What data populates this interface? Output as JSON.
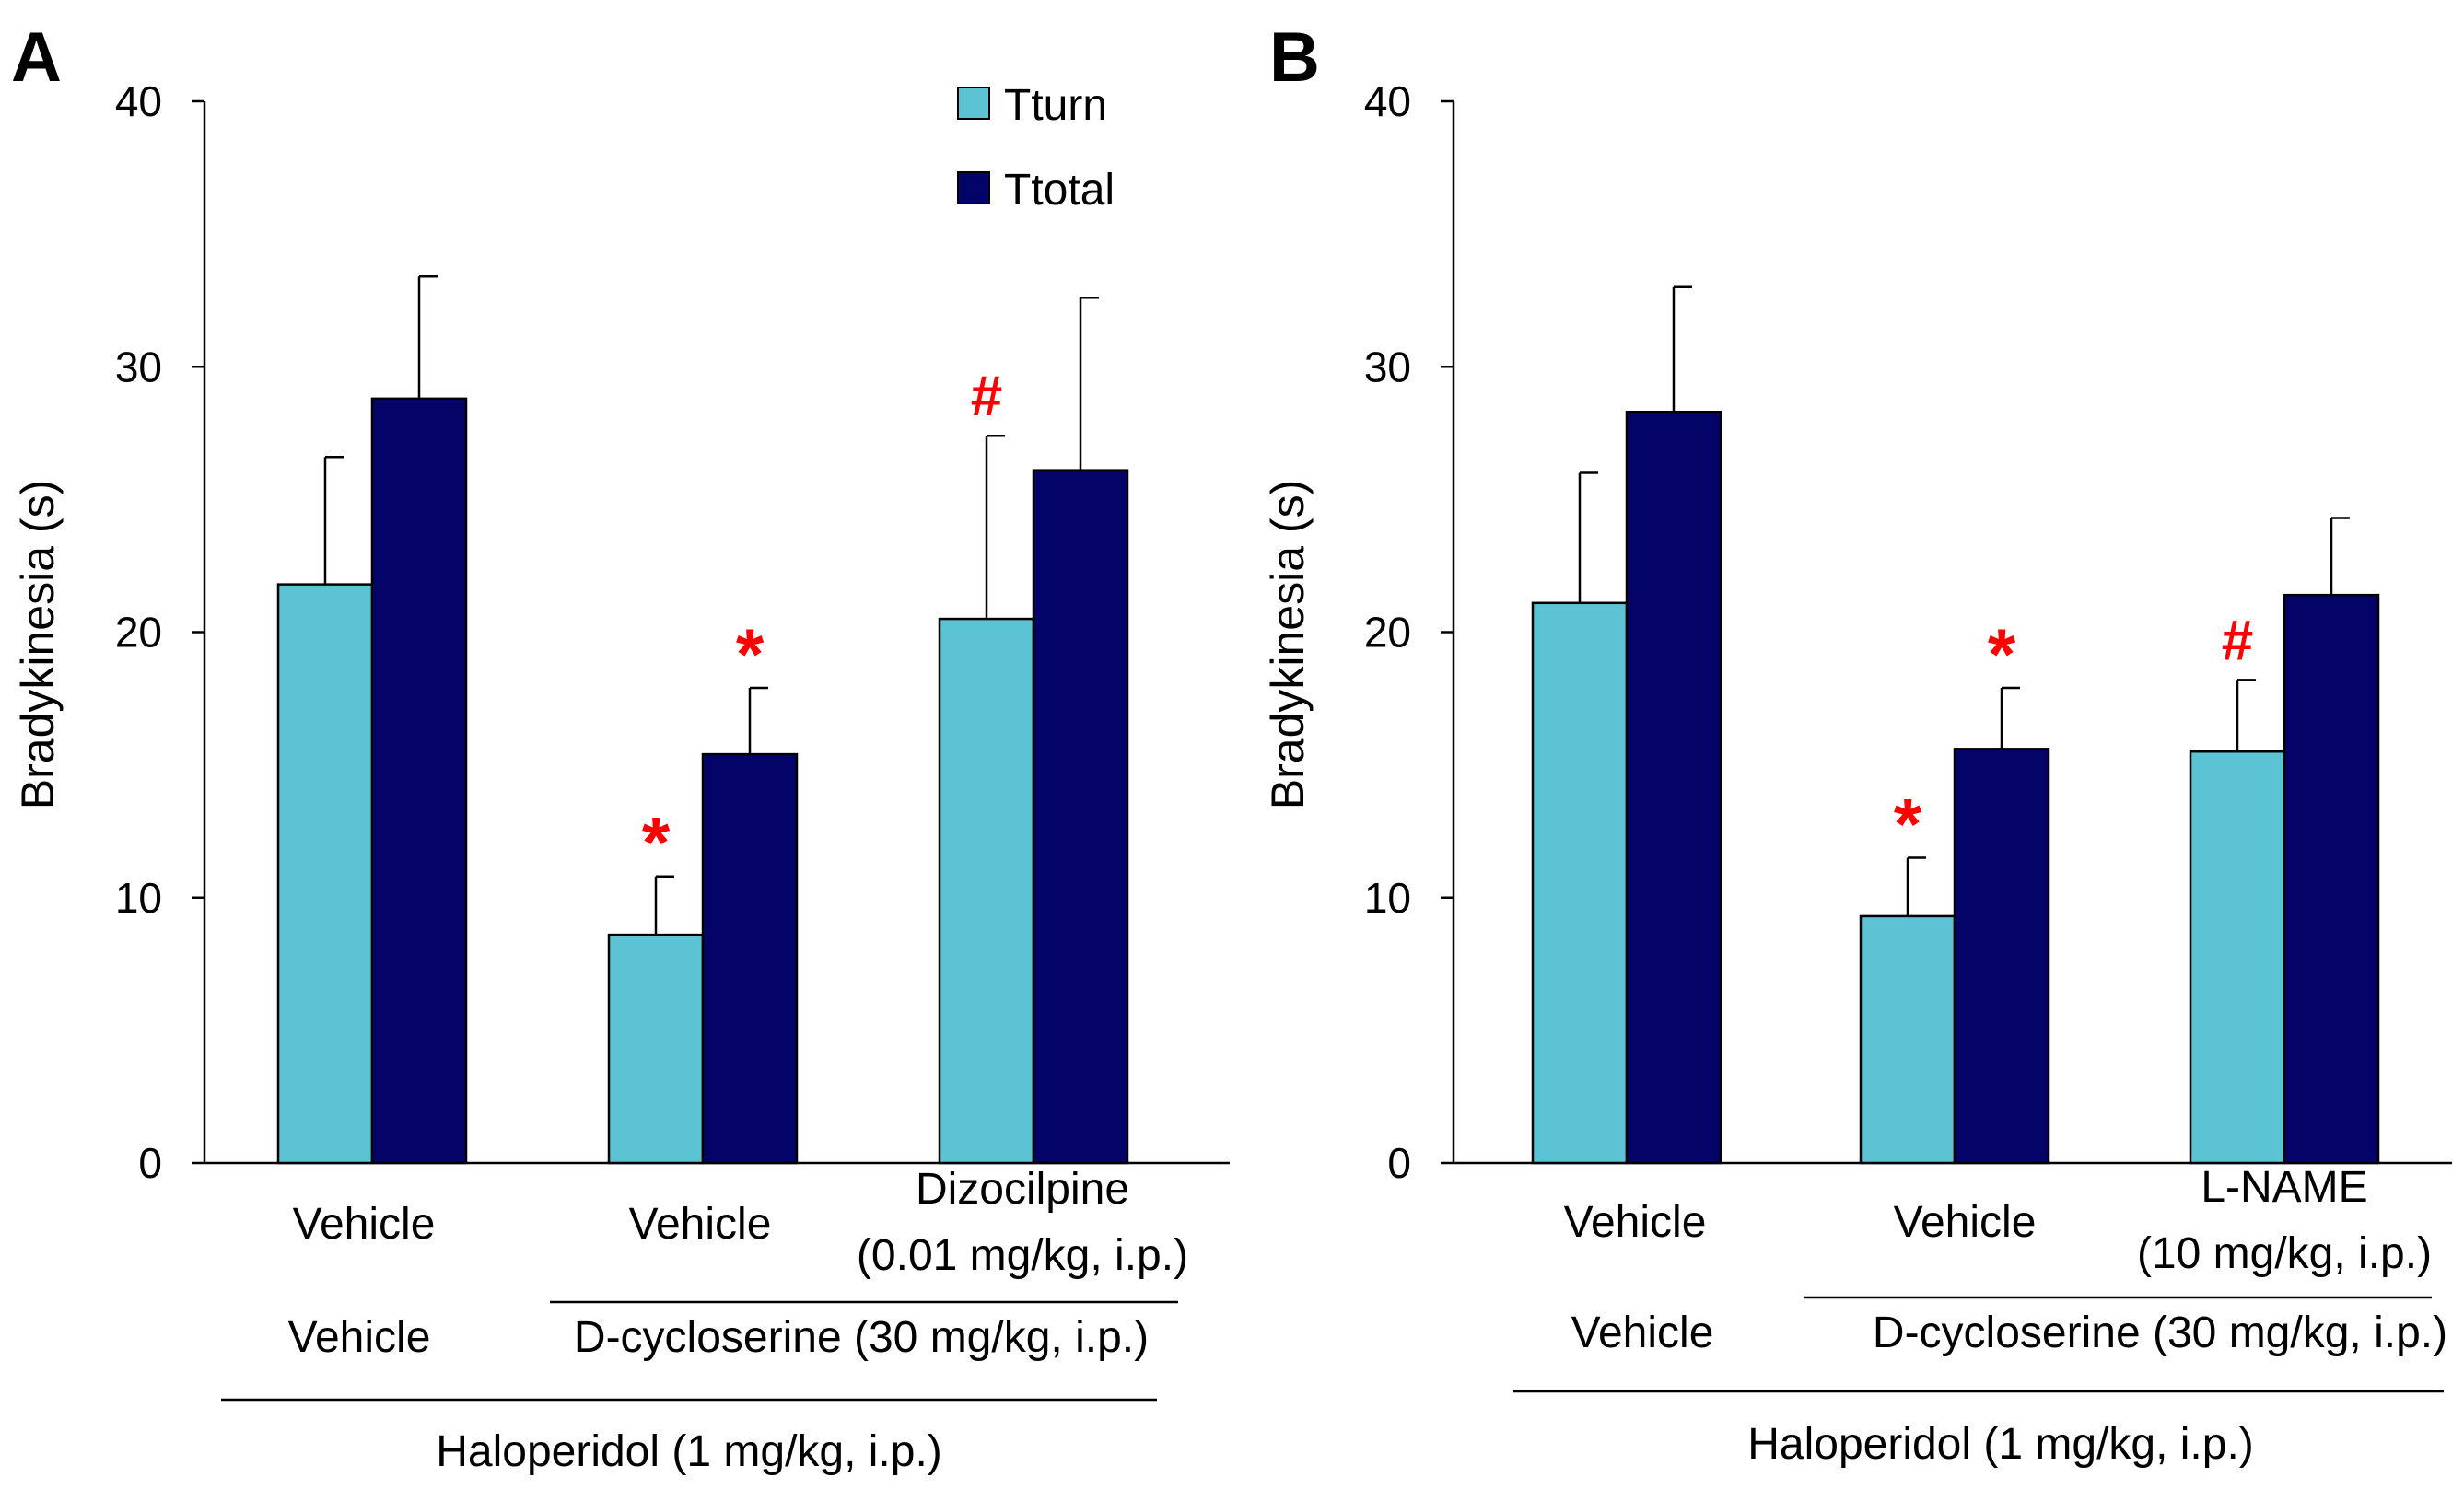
{
  "colors": {
    "tturn": "#5bc3d4",
    "ttotal": "#040468",
    "significance": "#ff0000"
  },
  "chart_data": [
    {
      "type": "bar",
      "panel_label": "A",
      "ylabel": "Bradykinesia (s)",
      "ylim": [
        0,
        40
      ],
      "yticks": [
        "0",
        "10",
        "20",
        "30",
        "40"
      ],
      "legend": [
        "Tturn",
        "Ttotal"
      ],
      "categories": [
        "Vehicle",
        "Vehicle",
        "Dizocilpine\n(0.01 mg/kg, i.p.)"
      ],
      "category_lines": [
        [
          "Vehicle"
        ],
        [
          "Vehicle"
        ],
        [
          "Dizocilpine",
          "(0.01 mg/kg, i.p.)"
        ]
      ],
      "group2_labels": [
        "Vehicle",
        "D-cycloserine (30 mg/kg, i.p.)"
      ],
      "group3_label": "Haloperidol (1 mg/kg, i.p.)",
      "series": [
        {
          "name": "Tturn",
          "values": [
            21.8,
            8.6,
            20.5
          ],
          "errors": [
            4.8,
            2.2,
            6.9
          ],
          "marks": [
            "",
            "*",
            "#"
          ]
        },
        {
          "name": "Ttotal",
          "values": [
            28.8,
            15.4,
            26.1
          ],
          "errors": [
            4.6,
            2.5,
            6.5
          ],
          "marks": [
            "",
            "*",
            ""
          ]
        }
      ]
    },
    {
      "type": "bar",
      "panel_label": "B",
      "ylabel": "Bradykinesia (s)",
      "ylim": [
        0,
        40
      ],
      "yticks": [
        "0",
        "10",
        "20",
        "30",
        "40"
      ],
      "categories": [
        "Vehicle",
        "Vehicle",
        "L-NAME\n(10 mg/kg, i.p.)"
      ],
      "category_lines": [
        [
          "Vehicle"
        ],
        [
          "Vehicle"
        ],
        [
          "L-NAME",
          "(10 mg/kg, i.p.)"
        ]
      ],
      "group2_labels": [
        "Vehicle",
        "D-cycloserine (30 mg/kg, i.p.)"
      ],
      "group3_label": "Haloperidol (1 mg/kg, i.p.)",
      "series": [
        {
          "name": "Tturn",
          "values": [
            21.1,
            9.3,
            15.5
          ],
          "errors": [
            4.9,
            2.2,
            2.7
          ],
          "marks": [
            "",
            "*",
            "#"
          ]
        },
        {
          "name": "Ttotal",
          "values": [
            28.3,
            15.6,
            21.4
          ],
          "errors": [
            4.7,
            2.3,
            2.9
          ],
          "marks": [
            "",
            "*",
            ""
          ]
        }
      ]
    }
  ]
}
